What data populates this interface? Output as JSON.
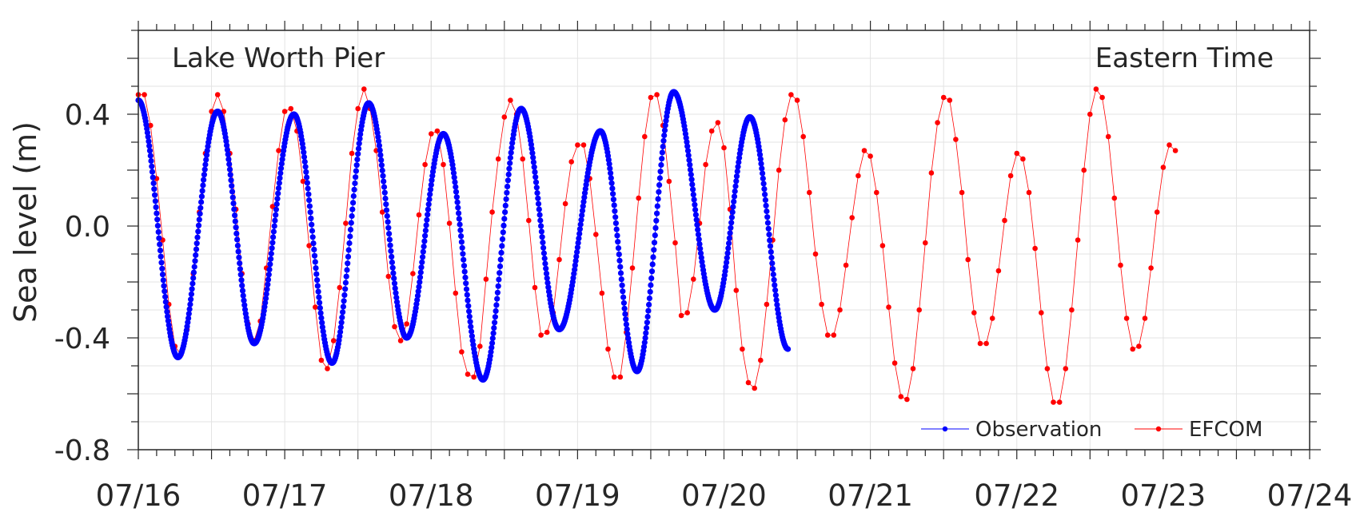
{
  "chart_data": {
    "type": "line",
    "annotation_left": "Lake Worth Pier",
    "annotation_right": "Eastern Time",
    "ylabel": "Sea level (m)",
    "xlabel": "",
    "xlim": [
      "07/16 00:00",
      "07/24 00:00"
    ],
    "ylim": [
      -0.8,
      0.7
    ],
    "x_ticks": [
      "07/16",
      "07/17",
      "07/18",
      "07/19",
      "07/20",
      "07/21",
      "07/22",
      "07/23",
      "07/24"
    ],
    "y_ticks": [
      "0.4",
      "0.0",
      "-0.4",
      "-0.8"
    ],
    "grid": true,
    "legend_position": "bottom-right",
    "series": [
      {
        "name": "Observation",
        "color": "#0000ff",
        "marker": "dot",
        "x_start": "07/16 00:00",
        "x_end": "07/20 10:30",
        "x_step_minutes": 6,
        "extrema": [
          {
            "x": "07/16 00:00",
            "y": 0.45
          },
          {
            "x": "07/16 06:30",
            "y": -0.47
          },
          {
            "x": "07/16 13:00",
            "y": 0.41
          },
          {
            "x": "07/16 19:00",
            "y": -0.42
          },
          {
            "x": "07/17 01:30",
            "y": 0.4
          },
          {
            "x": "07/17 07:45",
            "y": -0.49
          },
          {
            "x": "07/17 13:45",
            "y": 0.44
          },
          {
            "x": "07/17 20:00",
            "y": -0.4
          },
          {
            "x": "07/18 02:00",
            "y": 0.33
          },
          {
            "x": "07/18 08:30",
            "y": -0.55
          },
          {
            "x": "07/18 14:45",
            "y": 0.42
          },
          {
            "x": "07/18 21:00",
            "y": -0.37
          },
          {
            "x": "07/19 03:45",
            "y": 0.34
          },
          {
            "x": "07/19 09:45",
            "y": -0.52
          },
          {
            "x": "07/19 15:45",
            "y": 0.48
          },
          {
            "x": "07/19 22:30",
            "y": -0.3
          },
          {
            "x": "07/20 04:15",
            "y": 0.39
          },
          {
            "x": "07/20 10:30",
            "y": -0.44
          }
        ]
      },
      {
        "name": "EFCOM",
        "color": "#ff0000",
        "marker": "dot",
        "x_start": "07/16 00:00",
        "x_step_minutes": 60,
        "values": [
          0.47,
          0.47,
          0.36,
          0.17,
          -0.05,
          -0.28,
          -0.43,
          -0.46,
          -0.37,
          -0.17,
          0.05,
          0.26,
          0.41,
          0.47,
          0.41,
          0.26,
          0.06,
          -0.17,
          -0.35,
          -0.41,
          -0.34,
          -0.15,
          0.07,
          0.27,
          0.41,
          0.42,
          0.34,
          0.16,
          -0.07,
          -0.29,
          -0.48,
          -0.51,
          -0.41,
          -0.22,
          0.01,
          0.26,
          0.42,
          0.49,
          0.42,
          0.27,
          0.05,
          -0.18,
          -0.36,
          -0.41,
          -0.35,
          -0.17,
          0.04,
          0.22,
          0.33,
          0.34,
          0.22,
          0.01,
          -0.24,
          -0.45,
          -0.53,
          -0.54,
          -0.43,
          -0.19,
          0.05,
          0.24,
          0.39,
          0.45,
          0.4,
          0.24,
          0.02,
          -0.22,
          -0.39,
          -0.38,
          -0.31,
          -0.12,
          0.08,
          0.23,
          0.29,
          0.29,
          0.17,
          -0.03,
          -0.24,
          -0.44,
          -0.54,
          -0.54,
          -0.38,
          -0.15,
          0.1,
          0.32,
          0.46,
          0.47,
          0.36,
          0.16,
          -0.06,
          -0.32,
          -0.31,
          -0.19,
          0.01,
          0.22,
          0.34,
          0.37,
          0.28,
          0.06,
          -0.23,
          -0.44,
          -0.56,
          -0.58,
          -0.48,
          -0.28,
          -0.05,
          0.2,
          0.38,
          0.47,
          0.45,
          0.32,
          0.12,
          -0.1,
          -0.28,
          -0.39,
          -0.39,
          -0.3,
          -0.14,
          0.03,
          0.18,
          0.27,
          0.25,
          0.12,
          -0.07,
          -0.29,
          -0.49,
          -0.61,
          -0.62,
          -0.51,
          -0.3,
          -0.06,
          0.19,
          0.37,
          0.46,
          0.45,
          0.31,
          0.12,
          -0.12,
          -0.31,
          -0.42,
          -0.42,
          -0.33,
          -0.16,
          0.02,
          0.18,
          0.26,
          0.24,
          0.12,
          -0.08,
          -0.31,
          -0.51,
          -0.63,
          -0.63,
          -0.51,
          -0.3,
          -0.05,
          0.2,
          0.4,
          0.49,
          0.46,
          0.32,
          0.1,
          -0.14,
          -0.33,
          -0.44,
          -0.43,
          -0.33,
          -0.15,
          0.05,
          0.21,
          0.29,
          0.27
        ]
      }
    ]
  }
}
